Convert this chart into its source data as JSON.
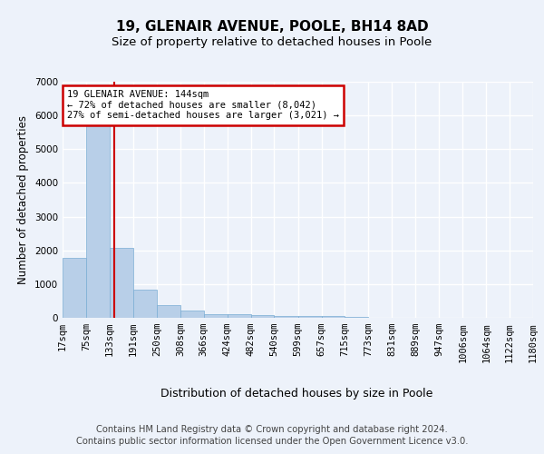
{
  "title1": "19, GLENAIR AVENUE, POOLE, BH14 8AD",
  "title2": "Size of property relative to detached houses in Poole",
  "xlabel": "Distribution of detached houses by size in Poole",
  "ylabel": "Number of detached properties",
  "bins": [
    "17sqm",
    "75sqm",
    "133sqm",
    "191sqm",
    "250sqm",
    "308sqm",
    "366sqm",
    "424sqm",
    "482sqm",
    "540sqm",
    "599sqm",
    "657sqm",
    "715sqm",
    "773sqm",
    "831sqm",
    "889sqm",
    "947sqm",
    "1006sqm",
    "1064sqm",
    "1122sqm",
    "1180sqm"
  ],
  "bin_edges": [
    17,
    75,
    133,
    191,
    250,
    308,
    366,
    424,
    482,
    540,
    599,
    657,
    715,
    773,
    831,
    889,
    947,
    1006,
    1064,
    1122,
    1180
  ],
  "values": [
    1780,
    5800,
    2070,
    830,
    380,
    220,
    120,
    105,
    80,
    60,
    55,
    45,
    40,
    0,
    0,
    0,
    0,
    0,
    0,
    0
  ],
  "bar_color": "#b8cfe8",
  "bar_edge_color": "#7aadd4",
  "property_line_x": 144,
  "annotation_title": "19 GLENAIR AVENUE: 144sqm",
  "annotation_line1": "← 72% of detached houses are smaller (8,042)",
  "annotation_line2": "27% of semi-detached houses are larger (3,021) →",
  "annotation_box_color": "#ffffff",
  "annotation_box_edge_color": "#cc0000",
  "vline_color": "#cc0000",
  "ylim": [
    0,
    7000
  ],
  "yticks": [
    0,
    1000,
    2000,
    3000,
    4000,
    5000,
    6000,
    7000
  ],
  "footer1": "Contains HM Land Registry data © Crown copyright and database right 2024.",
  "footer2": "Contains public sector information licensed under the Open Government Licence v3.0.",
  "bg_color": "#edf2fa",
  "plot_bg_color": "#edf2fa",
  "grid_color": "#ffffff",
  "title1_fontsize": 11,
  "title2_fontsize": 9.5,
  "ylabel_fontsize": 8.5,
  "xlabel_fontsize": 9,
  "tick_fontsize": 7.5,
  "annotation_fontsize": 7.5,
  "footer_fontsize": 7.2
}
